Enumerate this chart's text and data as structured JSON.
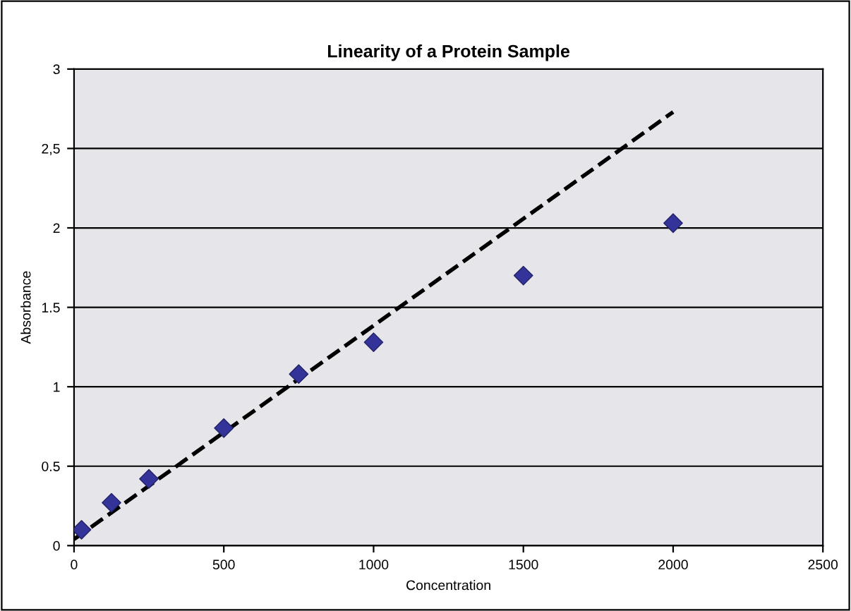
{
  "chart_data": {
    "type": "scatter",
    "title": "Linearity of a Protein Sample",
    "xlabel": "Concentration",
    "ylabel": "Absorbance",
    "series": [
      {
        "color": "#333399",
        "marker": "diamond",
        "x": [
          25,
          125,
          250,
          500,
          750,
          1000,
          1500,
          2000
        ],
        "values": [
          0.1,
          0.27,
          0.42,
          0.74,
          1.08,
          1.28,
          1.7,
          2.03
        ]
      },
      {
        "type": "line",
        "color": "#000000",
        "line_style": "dashed",
        "marker": "none",
        "x": [
          0,
          2000
        ],
        "values": [
          0.04,
          2.73
        ]
      }
    ],
    "xlim": [
      0,
      2500
    ],
    "ylim": [
      0,
      3
    ],
    "xticks": [
      0,
      500,
      1000,
      1500,
      2000,
      2500
    ],
    "yticks": [
      0,
      0.5,
      1,
      1.5,
      2,
      {
        "value": 2.5,
        "label": "2,5"
      },
      3
    ],
    "grid": "y",
    "legend": false
  }
}
